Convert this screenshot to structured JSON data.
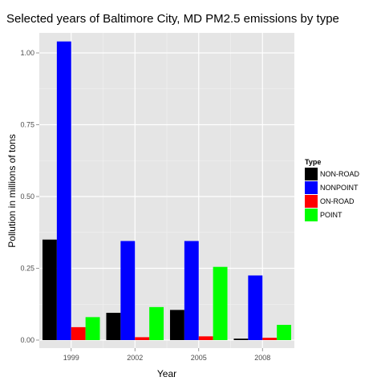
{
  "chart_data": {
    "type": "bar",
    "title": "Selected years of Baltimore City, MD PM2.5 emissions by type",
    "xlabel": "Year",
    "ylabel": "Pollution in millions of tons",
    "categories": [
      "1999",
      "2002",
      "2005",
      "2008"
    ],
    "ylim": [
      0,
      1.09
    ],
    "yticks": [
      0,
      0.25,
      0.5,
      0.75,
      1.0
    ],
    "ytick_labels": [
      "0.00",
      "0.25",
      "0.50",
      "0.75",
      "1.00"
    ],
    "grid": true,
    "legend": {
      "title": "Type",
      "position": "right"
    },
    "series": [
      {
        "name": "NON-ROAD",
        "color": "#000000",
        "values": [
          0.35,
          0.095,
          0.105,
          0.005
        ]
      },
      {
        "name": "NONPOINT",
        "color": "#0000ff",
        "values": [
          1.04,
          0.345,
          0.345,
          0.225
        ]
      },
      {
        "name": "ON-ROAD",
        "color": "#ff0000",
        "values": [
          0.045,
          0.01,
          0.013,
          0.008
        ]
      },
      {
        "name": "POINT",
        "color": "#00ff00",
        "values": [
          0.08,
          0.115,
          0.255,
          0.053
        ]
      }
    ]
  }
}
